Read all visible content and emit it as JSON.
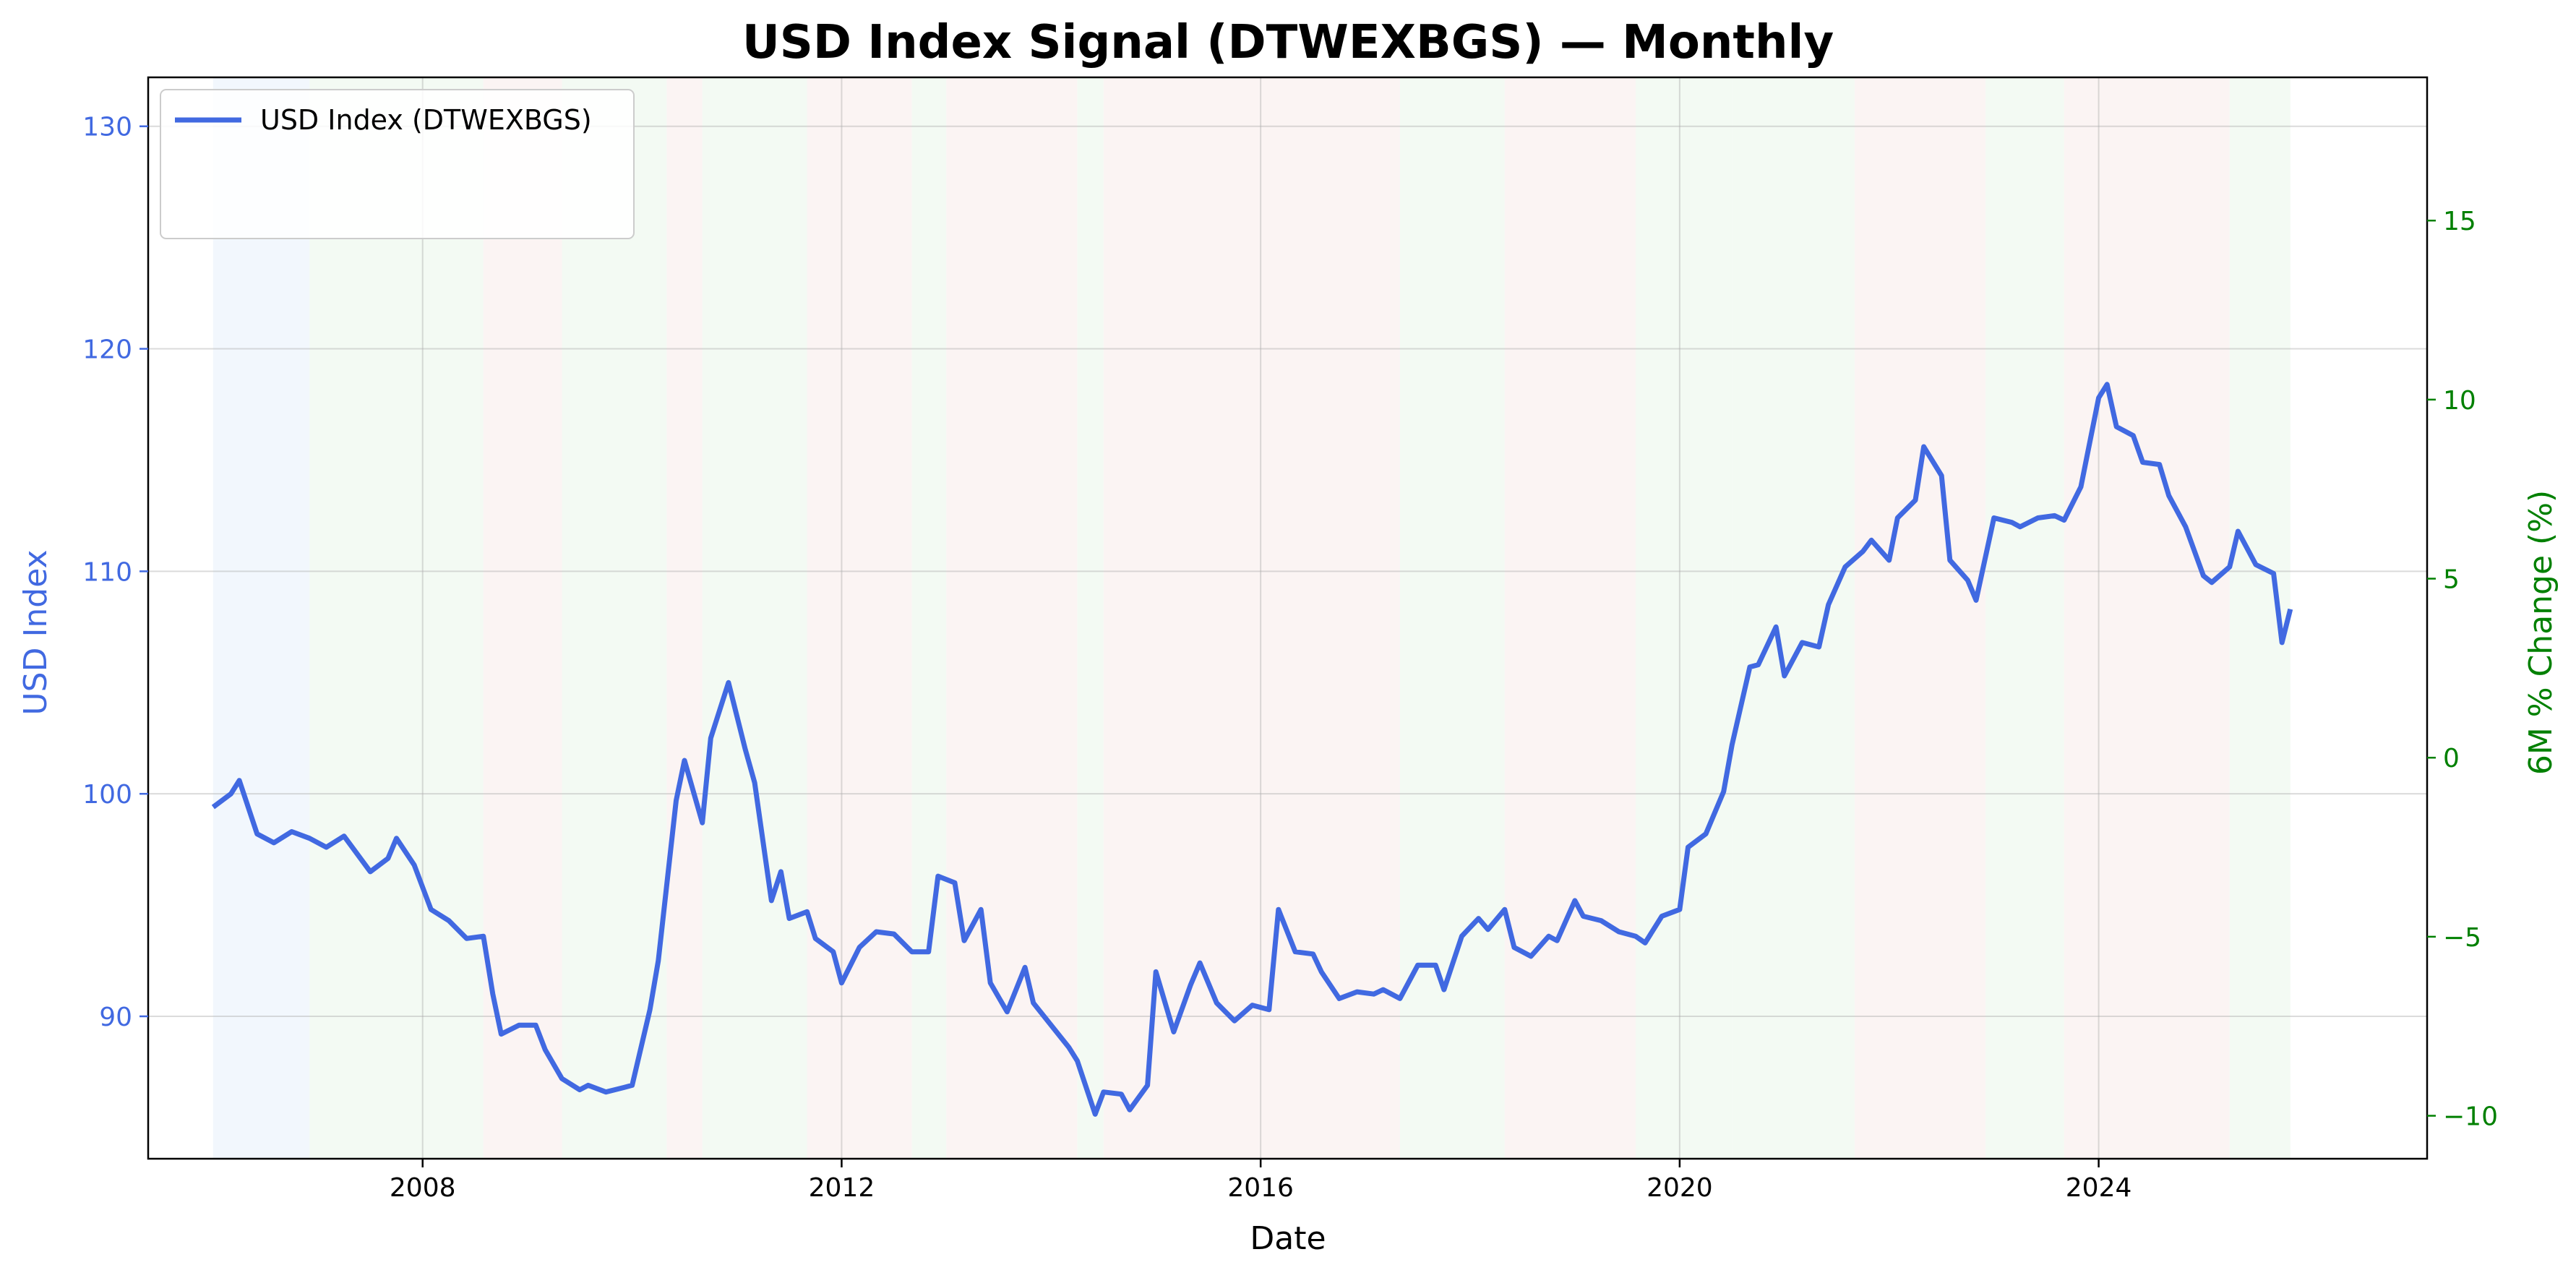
{
  "chart_data": {
    "type": "line",
    "title": "USD Index Signal (DTWEXBGS) — Monthly",
    "xlabel": "Date",
    "ylabel": "USD Index",
    "y2label": "6M % Change (%)",
    "xlim": [
      2006.0,
      2025.83
    ],
    "ylim": [
      83.6,
      132.2
    ],
    "y2lim": [
      -11.2,
      19.0
    ],
    "x_ticks": [
      2008,
      2012,
      2016,
      2020,
      2024
    ],
    "y_ticks": [
      90,
      100,
      110,
      120,
      130
    ],
    "y2_ticks": [
      -10,
      -5,
      0,
      5,
      10,
      15
    ],
    "grid": true,
    "legend_position": "upper-left",
    "regime_shading": [
      {
        "start": 2006.0,
        "end": 2006.92,
        "color": "#e8f0fb"
      },
      {
        "start": 2006.92,
        "end": 2008.58,
        "color": "#eaf6ea"
      },
      {
        "start": 2008.58,
        "end": 2009.33,
        "color": "#f8ebea"
      },
      {
        "start": 2009.33,
        "end": 2010.33,
        "color": "#eaf6ea"
      },
      {
        "start": 2010.33,
        "end": 2010.67,
        "color": "#f8ebea"
      },
      {
        "start": 2010.67,
        "end": 2011.67,
        "color": "#eaf6ea"
      },
      {
        "start": 2011.67,
        "end": 2012.67,
        "color": "#f8ebea"
      },
      {
        "start": 2012.67,
        "end": 2013.0,
        "color": "#eaf6ea"
      },
      {
        "start": 2013.0,
        "end": 2014.25,
        "color": "#f8ebea"
      },
      {
        "start": 2014.25,
        "end": 2014.5,
        "color": "#eaf6ea"
      },
      {
        "start": 2014.5,
        "end": 2017.33,
        "color": "#f8ebea"
      },
      {
        "start": 2017.33,
        "end": 2018.33,
        "color": "#eaf6ea"
      },
      {
        "start": 2018.33,
        "end": 2019.58,
        "color": "#f8ebea"
      },
      {
        "start": 2019.58,
        "end": 2020.5,
        "color": "#eaf6ea"
      },
      {
        "start": 2020.5,
        "end": 2021.67,
        "color": "#eaf6ea"
      },
      {
        "start": 2021.67,
        "end": 2022.92,
        "color": "#f8ebea"
      },
      {
        "start": 2022.92,
        "end": 2023.67,
        "color": "#eaf6ea"
      },
      {
        "start": 2023.67,
        "end": 2024.75,
        "color": "#f8ebea"
      },
      {
        "start": 2024.75,
        "end": 2025.25,
        "color": "#f8ebea"
      },
      {
        "start": 2025.25,
        "end": 2025.83,
        "color": "#eaf6ea"
      }
    ],
    "series": [
      {
        "name": "USD Index (DTWEXBGS)",
        "axis": "left",
        "color": "#4169e1",
        "style": "solid",
        "points": [
          [
            2006.0,
            99.4
          ],
          [
            2006.17,
            100.0
          ],
          [
            2006.25,
            100.6
          ],
          [
            2006.42,
            98.2
          ],
          [
            2006.58,
            97.8
          ],
          [
            2006.75,
            98.3
          ],
          [
            2006.92,
            98.0
          ],
          [
            2007.08,
            97.6
          ],
          [
            2007.25,
            98.1
          ],
          [
            2007.5,
            96.5
          ],
          [
            2007.67,
            97.1
          ],
          [
            2007.75,
            98.0
          ],
          [
            2007.92,
            96.8
          ],
          [
            2008.08,
            94.8
          ],
          [
            2008.25,
            94.3
          ],
          [
            2008.42,
            93.5
          ],
          [
            2008.58,
            93.6
          ],
          [
            2008.67,
            91.0
          ],
          [
            2008.75,
            89.2
          ],
          [
            2008.92,
            89.6
          ],
          [
            2009.08,
            89.6
          ],
          [
            2009.17,
            88.5
          ],
          [
            2009.33,
            87.2
          ],
          [
            2009.5,
            86.7
          ],
          [
            2009.58,
            86.9
          ],
          [
            2009.75,
            86.6
          ],
          [
            2009.92,
            86.8
          ],
          [
            2010.0,
            86.9
          ],
          [
            2010.17,
            90.3
          ],
          [
            2010.25,
            92.5
          ],
          [
            2010.42,
            99.7
          ],
          [
            2010.5,
            101.5
          ],
          [
            2010.67,
            98.7
          ],
          [
            2010.75,
            102.5
          ],
          [
            2010.92,
            105.0
          ],
          [
            2011.08,
            102.0
          ],
          [
            2011.17,
            100.5
          ],
          [
            2011.33,
            95.2
          ],
          [
            2011.42,
            96.5
          ],
          [
            2011.5,
            94.4
          ],
          [
            2011.67,
            94.7
          ],
          [
            2011.75,
            93.5
          ],
          [
            2011.92,
            92.9
          ],
          [
            2012.0,
            91.5
          ],
          [
            2012.17,
            93.1
          ],
          [
            2012.33,
            93.8
          ],
          [
            2012.5,
            93.7
          ],
          [
            2012.67,
            92.9
          ],
          [
            2012.83,
            92.9
          ],
          [
            2012.92,
            96.3
          ],
          [
            2013.08,
            96.0
          ],
          [
            2013.17,
            93.4
          ],
          [
            2013.33,
            94.8
          ],
          [
            2013.42,
            91.5
          ],
          [
            2013.58,
            90.2
          ],
          [
            2013.75,
            92.2
          ],
          [
            2013.83,
            90.6
          ],
          [
            2014.0,
            89.6
          ],
          [
            2014.17,
            88.6
          ],
          [
            2014.25,
            88.0
          ],
          [
            2014.42,
            85.6
          ],
          [
            2014.5,
            86.6
          ],
          [
            2014.67,
            86.5
          ],
          [
            2014.75,
            85.8
          ],
          [
            2014.92,
            86.9
          ],
          [
            2015.0,
            92.0
          ],
          [
            2015.17,
            89.3
          ],
          [
            2015.33,
            91.4
          ],
          [
            2015.42,
            92.4
          ],
          [
            2015.58,
            90.6
          ],
          [
            2015.75,
            89.8
          ],
          [
            2015.92,
            90.5
          ],
          [
            2016.08,
            90.3
          ],
          [
            2016.17,
            94.8
          ],
          [
            2016.33,
            92.9
          ],
          [
            2016.5,
            92.8
          ],
          [
            2016.58,
            92.0
          ],
          [
            2016.75,
            90.8
          ],
          [
            2016.92,
            91.1
          ],
          [
            2017.08,
            91.0
          ],
          [
            2017.17,
            91.2
          ],
          [
            2017.33,
            90.8
          ],
          [
            2017.5,
            92.3
          ],
          [
            2017.67,
            92.3
          ],
          [
            2017.75,
            91.2
          ],
          [
            2017.92,
            93.6
          ],
          [
            2018.08,
            94.4
          ],
          [
            2018.17,
            93.9
          ],
          [
            2018.33,
            94.8
          ],
          [
            2018.42,
            93.1
          ],
          [
            2018.58,
            92.7
          ],
          [
            2018.75,
            93.6
          ],
          [
            2018.83,
            93.4
          ],
          [
            2019.0,
            95.2
          ],
          [
            2019.08,
            94.5
          ],
          [
            2019.25,
            94.3
          ],
          [
            2019.42,
            93.8
          ],
          [
            2019.58,
            93.6
          ],
          [
            2019.67,
            93.3
          ],
          [
            2019.83,
            94.5
          ],
          [
            2020.0,
            94.8
          ],
          [
            2020.08,
            97.6
          ],
          [
            2020.25,
            98.2
          ],
          [
            2020.42,
            100.1
          ],
          [
            2020.5,
            102.2
          ],
          [
            2020.67,
            105.7
          ],
          [
            2020.75,
            105.8
          ],
          [
            2020.92,
            107.5
          ],
          [
            2021.0,
            105.3
          ],
          [
            2021.17,
            106.8
          ],
          [
            2021.33,
            106.6
          ],
          [
            2021.42,
            108.5
          ],
          [
            2021.58,
            110.2
          ],
          [
            2021.75,
            110.9
          ],
          [
            2021.83,
            111.4
          ],
          [
            2022.0,
            110.5
          ],
          [
            2022.08,
            112.4
          ],
          [
            2022.25,
            113.2
          ],
          [
            2022.33,
            115.6
          ],
          [
            2022.5,
            114.3
          ],
          [
            2022.58,
            110.5
          ],
          [
            2022.75,
            109.6
          ],
          [
            2022.83,
            108.7
          ],
          [
            2023.0,
            112.4
          ],
          [
            2023.17,
            112.2
          ],
          [
            2023.25,
            112.0
          ],
          [
            2023.42,
            112.4
          ],
          [
            2023.58,
            112.5
          ],
          [
            2023.67,
            112.3
          ],
          [
            2023.83,
            113.8
          ],
          [
            2024.0,
            117.8
          ],
          [
            2024.08,
            118.4
          ],
          [
            2024.17,
            116.5
          ],
          [
            2024.33,
            116.1
          ],
          [
            2024.42,
            114.9
          ],
          [
            2024.58,
            114.8
          ],
          [
            2024.67,
            113.4
          ],
          [
            2024.83,
            112.0
          ],
          [
            2025.0,
            109.8
          ],
          [
            2025.08,
            109.5
          ],
          [
            2025.25,
            110.2
          ],
          [
            2025.33,
            111.8
          ],
          [
            2025.5,
            110.3
          ],
          [
            2025.67,
            109.9
          ],
          [
            2025.75,
            106.8
          ],
          [
            2025.83,
            108.3
          ]
        ]
      }
    ]
  }
}
